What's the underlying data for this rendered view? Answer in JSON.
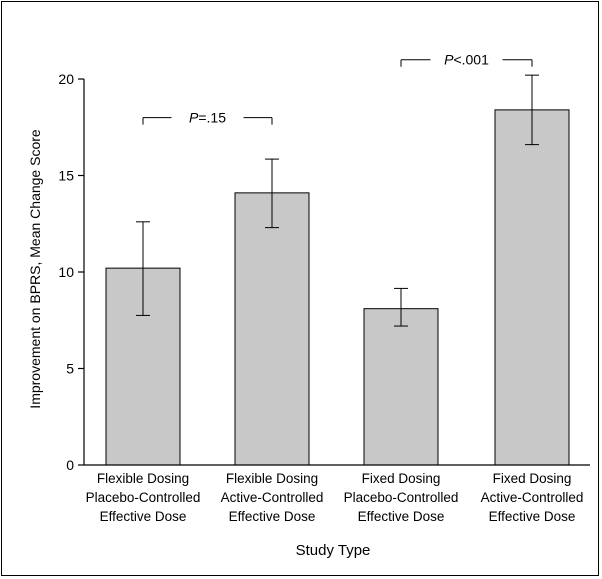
{
  "chart_data": {
    "type": "bar",
    "title": "",
    "xlabel": "Study Type",
    "ylabel": "Improvement on BPRS, Mean Change Score",
    "ylim": [
      0,
      20
    ],
    "yticks": [
      0,
      5,
      10,
      15,
      20
    ],
    "categories": [
      [
        "Flexible Dosing",
        "Placebo-Controlled",
        "Effective Dose"
      ],
      [
        "Flexible Dosing",
        "Active-Controlled",
        "Effective Dose"
      ],
      [
        "Fixed Dosing",
        "Placebo-Controlled",
        "Effective Dose"
      ],
      [
        "Fixed Dosing",
        "Active-Controlled",
        "Effective Dose"
      ]
    ],
    "values": [
      10.2,
      14.1,
      8.1,
      18.4
    ],
    "error_low": [
      7.75,
      12.3,
      7.2,
      16.6
    ],
    "error_high": [
      12.6,
      15.85,
      9.15,
      20.2
    ],
    "bar_color": "#c8c8c8",
    "annotations": [
      {
        "prefix": "P",
        "text": "=.15",
        "from": 0,
        "to": 1,
        "y": 18.0
      },
      {
        "prefix": "P",
        "text": "<.001",
        "from": 2,
        "to": 3,
        "y": 21.0
      }
    ],
    "grid": false,
    "legend": "none"
  }
}
